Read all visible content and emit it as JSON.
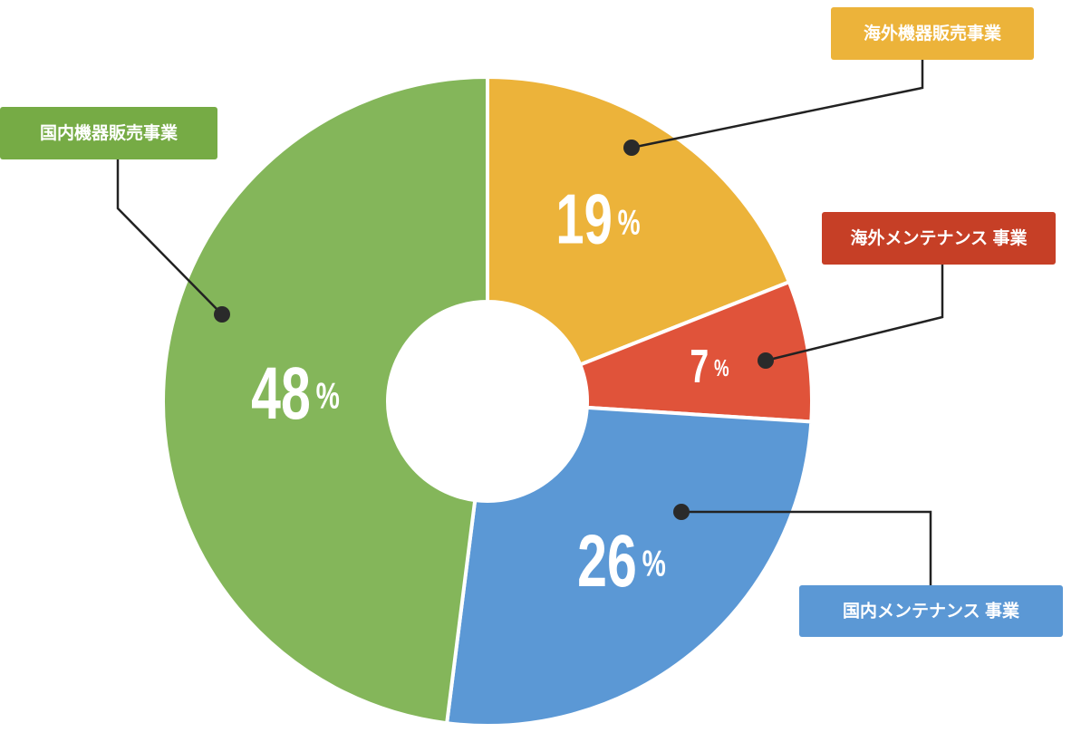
{
  "chart_data": {
    "type": "donut",
    "categories": [
      "海外機器販売事業",
      "海外メンテナンス 事業",
      "国内メンテナンス 事業",
      "国内機器販売事業"
    ],
    "values": [
      19,
      7,
      26,
      48
    ],
    "value_labels": [
      "19%",
      "7%",
      "26%",
      "48%"
    ],
    "colors": [
      "#ecb33a",
      "#e0533a",
      "#5b98d5",
      "#84b65a"
    ]
  }
}
